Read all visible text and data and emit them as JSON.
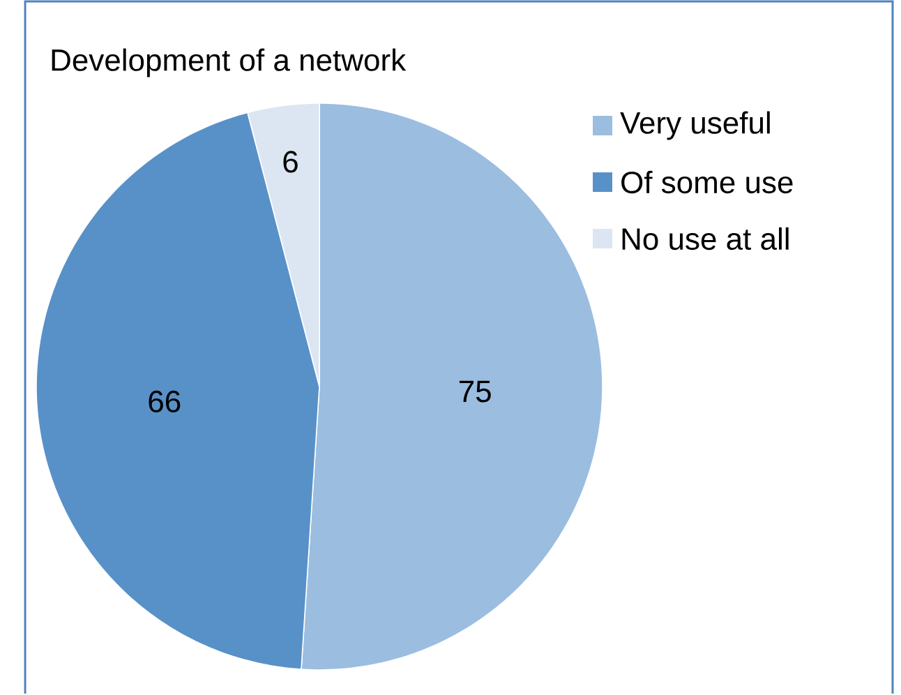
{
  "chart_data": {
    "type": "pie",
    "title": "Development of a network",
    "categories": [
      "Very useful",
      "Of some use",
      "No use at all"
    ],
    "values": [
      75,
      66,
      6
    ],
    "colors": [
      "#9bbde0",
      "#5891c8",
      "#dce6f2"
    ],
    "data_labels": true,
    "legend": "top right"
  }
}
